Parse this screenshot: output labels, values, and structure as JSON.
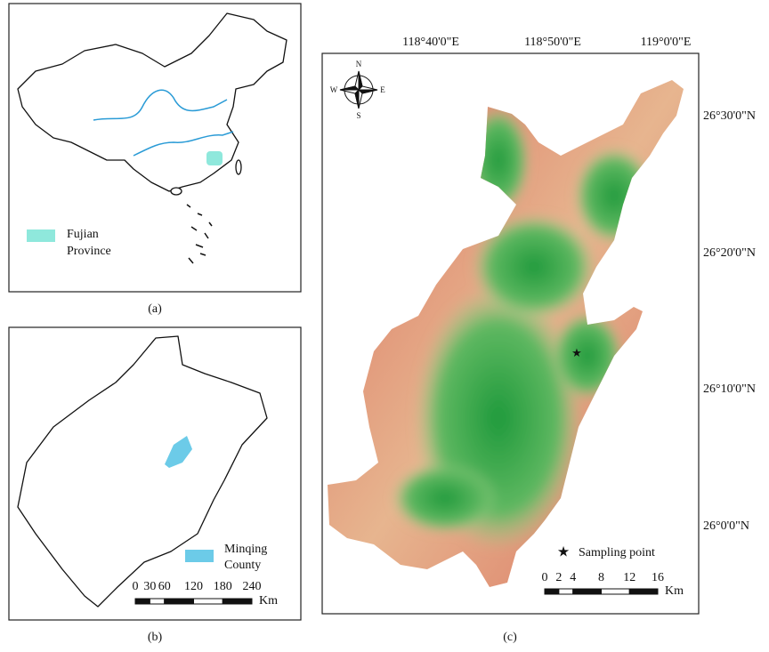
{
  "panel_a": {
    "legend": {
      "lines": [
        "Fujian",
        "Province"
      ]
    },
    "caption": "(a)"
  },
  "panel_b": {
    "legend": {
      "lines": [
        "Minqing",
        "County"
      ]
    },
    "scale_bar": {
      "ticks": [
        0,
        30,
        60,
        120,
        180,
        240
      ],
      "unit": "Km"
    },
    "caption": "(b)"
  },
  "panel_c": {
    "longitude_labels": [
      "118°40'0\"E",
      "118°50'0\"E",
      "119°0'0\"E"
    ],
    "latitude_labels": [
      "26°30'0\"N",
      "26°20'0\"N",
      "26°10'0\"N",
      "26°0'0\"N"
    ],
    "compass": {
      "north": "N",
      "south": "S",
      "west": "W",
      "east": "E"
    },
    "legend": {
      "label": "Sampling point"
    },
    "scale_bar": {
      "ticks": [
        0,
        2,
        4,
        8,
        12,
        16
      ],
      "unit": "Km"
    },
    "caption": "(c)"
  }
}
